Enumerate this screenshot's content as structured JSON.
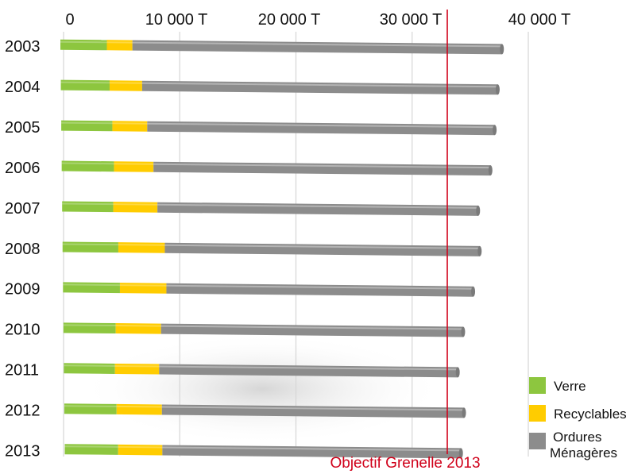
{
  "chart_data": {
    "type": "bar",
    "orientation": "horizontal",
    "stacked": true,
    "categories": [
      "2003",
      "2004",
      "2005",
      "2006",
      "2007",
      "2008",
      "2009",
      "2010",
      "2011",
      "2012",
      "2013"
    ],
    "series": [
      {
        "name": "Verre",
        "color": "#8dc63f",
        "values": [
          4000,
          4200,
          4400,
          4500,
          4400,
          4800,
          4900,
          4500,
          4400,
          4500,
          4600
        ]
      },
      {
        "name": "Recyclables",
        "color": "#ffcc00",
        "values": [
          2200,
          2800,
          3000,
          3400,
          3800,
          4000,
          4000,
          3900,
          3800,
          3900,
          3800
        ]
      },
      {
        "name": "Ordures Ménagères",
        "color": "#8c8c8c",
        "values": [
          31800,
          30600,
          29900,
          29000,
          27600,
          27100,
          26400,
          26000,
          25700,
          26000,
          25700
        ]
      }
    ],
    "xlim": [
      0,
      40000
    ],
    "x_ticks": [
      0,
      10000,
      20000,
      30000,
      40000
    ],
    "x_tick_labels": [
      "0",
      "10 000 T",
      "20 000 T",
      "30 000 T",
      "40 000 T"
    ],
    "target": {
      "label": "Objectif Grenelle 2013",
      "value": 33000,
      "color": "#d0021b"
    },
    "legend": [
      "Verre",
      "Recyclables",
      "Ordures Ménagères"
    ],
    "legend_position": "bottom-right",
    "grid": true
  }
}
